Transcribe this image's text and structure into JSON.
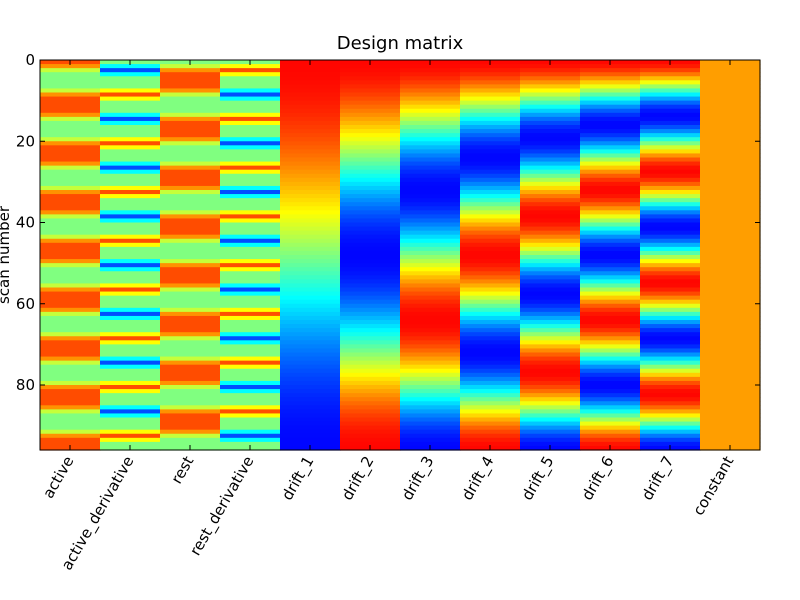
{
  "chart_data": {
    "type": "heatmap",
    "title": "Design matrix",
    "ylabel": "scan number",
    "xlabel": "",
    "colormap": "jet",
    "n_scans": 96,
    "ylim": [
      96,
      0
    ],
    "yticks": [
      0,
      20,
      40,
      60,
      80
    ],
    "columns": [
      "active",
      "active_derivative",
      "rest",
      "rest_derivative",
      "drift_1",
      "drift_2",
      "drift_3",
      "drift_4",
      "drift_5",
      "drift_6",
      "drift_7",
      "constant"
    ],
    "block_period_scans": 12,
    "active_on_scans_in_period": [
      6,
      11
    ],
    "rest_on_scans_in_period": [
      0,
      5
    ],
    "drift_order": 7,
    "constant_level": 0.72
  }
}
